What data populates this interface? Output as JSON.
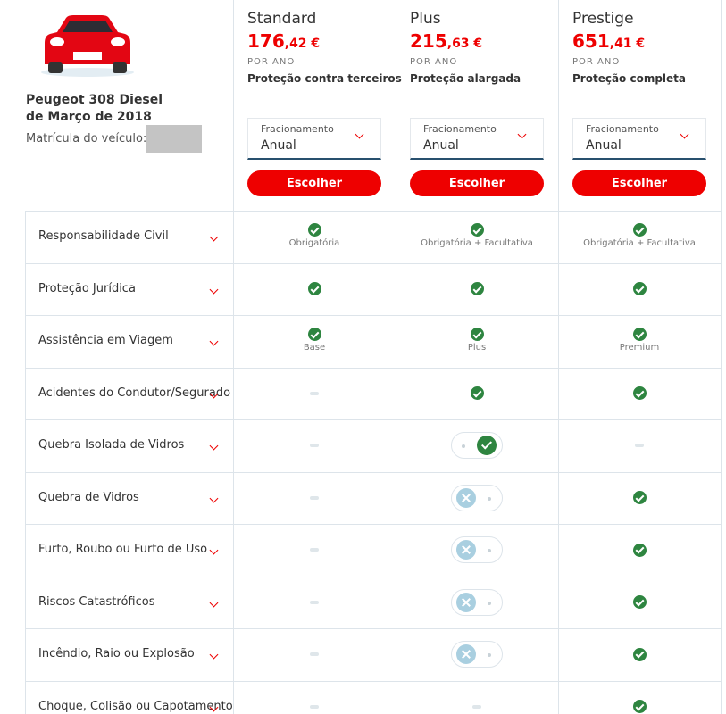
{
  "vehicle": {
    "model": "Peugeot 308 Diesel",
    "date": "de Março de 2018",
    "plate_label": "Matrícula do veículo:"
  },
  "plans": [
    {
      "name": "Standard",
      "price_integer": "176",
      "price_decimal": ",42 €",
      "period": "POR ANO",
      "coverage": "Proteção contra terceiros",
      "select_label": "Fracionamento",
      "select_value": "Anual",
      "button": "Escolher"
    },
    {
      "name": "Plus",
      "price_integer": "215",
      "price_decimal": ",63 €",
      "period": "POR ANO",
      "coverage": "Proteção alargada",
      "select_label": "Fracionamento",
      "select_value": "Anual",
      "button": "Escolher"
    },
    {
      "name": "Prestige",
      "price_integer": "651",
      "price_decimal": ",41 €",
      "period": "POR ANO",
      "coverage": "Proteção completa",
      "select_label": "Fracionamento",
      "select_value": "Anual",
      "button": "Escolher"
    }
  ],
  "rows": [
    {
      "name": "Responsabilidade Civil",
      "cells": [
        {
          "state": "check",
          "note": "Obrigatória"
        },
        {
          "state": "check",
          "note": "Obrigatória + Facultativa"
        },
        {
          "state": "check",
          "note": "Obrigatória + Facultativa"
        }
      ]
    },
    {
      "name": "Proteção Jurídica",
      "cells": [
        {
          "state": "check"
        },
        {
          "state": "check"
        },
        {
          "state": "check"
        }
      ]
    },
    {
      "name": "Assistência em Viagem",
      "cells": [
        {
          "state": "check",
          "note": "Base"
        },
        {
          "state": "check",
          "note": "Plus"
        },
        {
          "state": "check",
          "note": "Premium"
        }
      ]
    },
    {
      "name": "Acidentes do Condutor/Segurado",
      "cells": [
        {
          "state": "dash"
        },
        {
          "state": "check"
        },
        {
          "state": "check"
        }
      ]
    },
    {
      "name": "Quebra Isolada de Vidros",
      "cells": [
        {
          "state": "dash"
        },
        {
          "state": "toggle-on"
        },
        {
          "state": "dash"
        }
      ]
    },
    {
      "name": "Quebra de Vidros",
      "cells": [
        {
          "state": "dash"
        },
        {
          "state": "toggle-off"
        },
        {
          "state": "check"
        }
      ]
    },
    {
      "name": "Furto, Roubo ou Furto de Uso",
      "cells": [
        {
          "state": "dash"
        },
        {
          "state": "toggle-off"
        },
        {
          "state": "check"
        }
      ]
    },
    {
      "name": "Riscos Catastróficos",
      "cells": [
        {
          "state": "dash"
        },
        {
          "state": "toggle-off"
        },
        {
          "state": "check"
        }
      ]
    },
    {
      "name": "Incêndio, Raio ou Explosão",
      "cells": [
        {
          "state": "dash"
        },
        {
          "state": "toggle-off"
        },
        {
          "state": "check"
        }
      ]
    },
    {
      "name": "Choque, Colisão ou Capotamento",
      "cells": [
        {
          "state": "dash"
        },
        {
          "state": "dash"
        },
        {
          "state": "check"
        }
      ]
    }
  ]
}
